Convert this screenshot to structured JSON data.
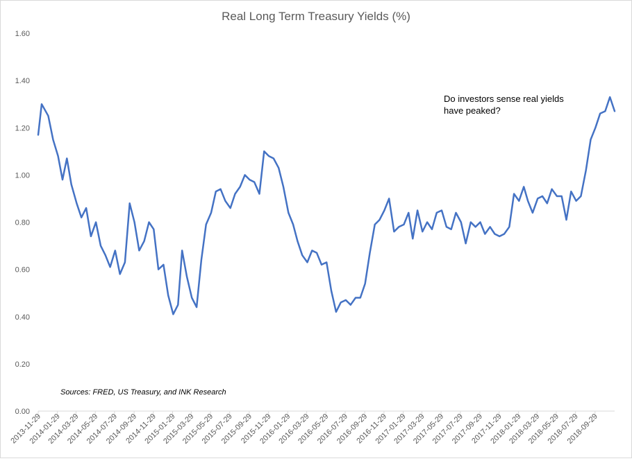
{
  "chart_data": {
    "type": "line",
    "title": "Real Long Term Treasury Yields (%)",
    "xlabel": "",
    "ylabel": "",
    "ylim": [
      0.0,
      1.6
    ],
    "y_ticks": [
      "0.00",
      "0.20",
      "0.40",
      "0.60",
      "0.80",
      "1.00",
      "1.20",
      "1.40",
      "1.60"
    ],
    "x_ticks": [
      "2013-11-29",
      "2014-01-29",
      "2014-03-29",
      "2014-05-29",
      "2014-07-29",
      "2014-09-29",
      "2014-11-29",
      "2015-01-29",
      "2015-03-29",
      "2015-05-29",
      "2015-07-29",
      "2015-09-29",
      "2015-11-29",
      "2016-01-29",
      "2016-03-29",
      "2016-05-29",
      "2016-07-29",
      "2016-09-29",
      "2016-11-29",
      "2017-01-29",
      "2017-03-29",
      "2017-05-29",
      "2017-07-29",
      "2017-09-29",
      "2017-11-29",
      "2018-01-29",
      "2018-03-29",
      "2018-05-29",
      "2018-07-29",
      "2018-09-29"
    ],
    "grid": false,
    "series": [
      {
        "color": "#4472c4",
        "x": [
          "2013-11-29",
          "2013-12-10",
          "2013-12-31",
          "2014-01-15",
          "2014-01-31",
          "2014-02-14",
          "2014-02-28",
          "2014-03-14",
          "2014-03-31",
          "2014-04-15",
          "2014-04-30",
          "2014-05-15",
          "2014-05-31",
          "2014-06-15",
          "2014-06-30",
          "2014-07-15",
          "2014-07-31",
          "2014-08-15",
          "2014-08-31",
          "2014-09-15",
          "2014-09-30",
          "2014-10-15",
          "2014-10-31",
          "2014-11-15",
          "2014-11-30",
          "2014-12-15",
          "2014-12-31",
          "2015-01-15",
          "2015-01-31",
          "2015-02-15",
          "2015-02-28",
          "2015-03-15",
          "2015-03-31",
          "2015-04-15",
          "2015-04-30",
          "2015-05-15",
          "2015-05-31",
          "2015-06-15",
          "2015-06-30",
          "2015-07-15",
          "2015-07-31",
          "2015-08-15",
          "2015-08-31",
          "2015-09-15",
          "2015-09-30",
          "2015-10-15",
          "2015-10-31",
          "2015-11-15",
          "2015-11-30",
          "2015-12-15",
          "2015-12-31",
          "2016-01-15",
          "2016-01-31",
          "2016-02-15",
          "2016-02-29",
          "2016-03-15",
          "2016-03-31",
          "2016-04-15",
          "2016-04-30",
          "2016-05-15",
          "2016-05-31",
          "2016-06-15",
          "2016-06-30",
          "2016-07-15",
          "2016-07-31",
          "2016-08-15",
          "2016-08-31",
          "2016-09-15",
          "2016-09-30",
          "2016-10-15",
          "2016-10-31",
          "2016-11-15",
          "2016-11-30",
          "2016-12-15",
          "2016-12-31",
          "2017-01-15",
          "2017-01-31",
          "2017-02-15",
          "2017-02-28",
          "2017-03-15",
          "2017-03-31",
          "2017-04-15",
          "2017-04-30",
          "2017-05-15",
          "2017-05-31",
          "2017-06-15",
          "2017-06-30",
          "2017-07-15",
          "2017-07-31",
          "2017-08-15",
          "2017-08-31",
          "2017-09-15",
          "2017-09-30",
          "2017-10-15",
          "2017-10-31",
          "2017-11-15",
          "2017-11-30",
          "2017-12-15",
          "2017-12-31",
          "2018-01-15",
          "2018-01-31",
          "2018-02-15",
          "2018-02-28",
          "2018-03-15",
          "2018-03-31",
          "2018-04-15",
          "2018-04-30",
          "2018-05-15",
          "2018-05-31",
          "2018-06-15",
          "2018-06-30",
          "2018-07-15",
          "2018-07-31",
          "2018-08-15",
          "2018-08-31",
          "2018-09-15",
          "2018-09-30",
          "2018-10-15",
          "2018-10-31",
          "2018-11-15",
          "2018-11-30"
        ],
        "values": [
          1.17,
          1.3,
          1.25,
          1.15,
          1.08,
          0.98,
          1.07,
          0.96,
          0.88,
          0.82,
          0.86,
          0.74,
          0.8,
          0.7,
          0.66,
          0.61,
          0.68,
          0.58,
          0.63,
          0.88,
          0.8,
          0.68,
          0.72,
          0.8,
          0.77,
          0.6,
          0.62,
          0.49,
          0.41,
          0.45,
          0.68,
          0.57,
          0.48,
          0.44,
          0.64,
          0.79,
          0.84,
          0.93,
          0.94,
          0.89,
          0.86,
          0.92,
          0.95,
          1.0,
          0.98,
          0.97,
          0.92,
          1.1,
          1.08,
          1.07,
          1.03,
          0.95,
          0.84,
          0.79,
          0.72,
          0.66,
          0.63,
          0.68,
          0.67,
          0.62,
          0.63,
          0.51,
          0.42,
          0.46,
          0.47,
          0.45,
          0.48,
          0.48,
          0.54,
          0.67,
          0.79,
          0.81,
          0.85,
          0.9,
          0.76,
          0.78,
          0.79,
          0.84,
          0.73,
          0.85,
          0.76,
          0.8,
          0.77,
          0.84,
          0.85,
          0.78,
          0.77,
          0.84,
          0.8,
          0.71,
          0.8,
          0.78,
          0.8,
          0.75,
          0.78,
          0.75,
          0.74,
          0.75,
          0.78,
          0.92,
          0.89,
          0.95,
          0.89,
          0.84,
          0.9,
          0.91,
          0.88,
          0.94,
          0.91,
          0.91,
          0.81,
          0.93,
          0.89,
          0.91,
          1.02,
          1.15,
          1.2,
          1.26,
          1.27,
          1.33,
          1.27
        ]
      }
    ],
    "annotations": [
      "Do investors sense real yields",
      "have peaked?"
    ],
    "source_note": "Sources: FRED, US Treasury,  and INK Research"
  }
}
